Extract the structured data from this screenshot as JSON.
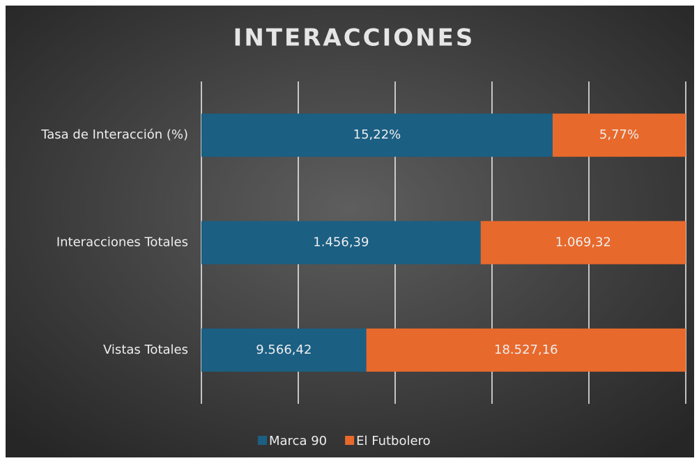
{
  "chart_data": {
    "type": "bar",
    "orientation": "horizontal",
    "stacking": "percent",
    "title": "INTERACCIONES",
    "categories": [
      "Tasa de Interacción (%)",
      "Interacciones Totales",
      "Vistas Totales"
    ],
    "series": [
      {
        "name": "Marca 90",
        "color": "#1b5f83",
        "values": [
          15.22,
          1456.39,
          9566.42
        ],
        "value_labels": [
          "15,22%",
          "1.456,39",
          "9.566,42"
        ]
      },
      {
        "name": "El Futbolero",
        "color": "#e8692c",
        "values": [
          5.77,
          1069.32,
          18527.16
        ],
        "value_labels": [
          "5,77%",
          "1.069,32",
          "18.527,16"
        ]
      }
    ],
    "xlim": [
      0,
      100
    ],
    "xticks": [
      0,
      20,
      40,
      60,
      80,
      100
    ],
    "grid": true,
    "legend": "bottom"
  }
}
